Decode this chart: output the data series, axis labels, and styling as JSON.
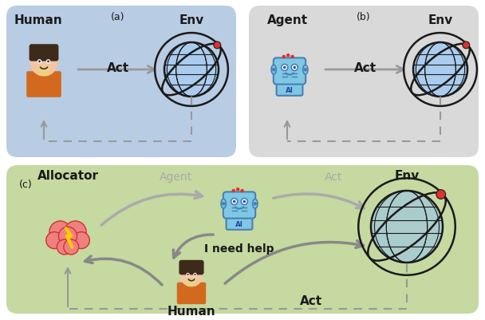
{
  "panel_a": {
    "bg_color": "#b8cce4",
    "title": "(a)",
    "label_left": "Human",
    "label_right": "Env",
    "arrow_label": "Act"
  },
  "panel_b": {
    "bg_color": "#d9d9d9",
    "title": "(b)",
    "label_left": "Agent",
    "label_right": "Env",
    "arrow_label": "Act"
  },
  "panel_c": {
    "bg_color": "#c5d9a0",
    "title": "(c)",
    "allocator_label": "Allocator",
    "agent_label": "Agent",
    "human_label": "Human",
    "act_label": "Act",
    "env_label": "Env",
    "help_label": "I need help"
  },
  "arrow_color": "#999999",
  "text_color_dark": "#1a1a1a",
  "text_color_gray": "#aaaaaa",
  "globe_color_ab": "#aaccee",
  "globe_color_c": "#aacccc",
  "robot_color": "#7ec8e3",
  "human_skin": "#f5c5a3",
  "human_shirt": "#d2691e",
  "brain_color": "#f08080",
  "bolt_color": "#ffcc00"
}
